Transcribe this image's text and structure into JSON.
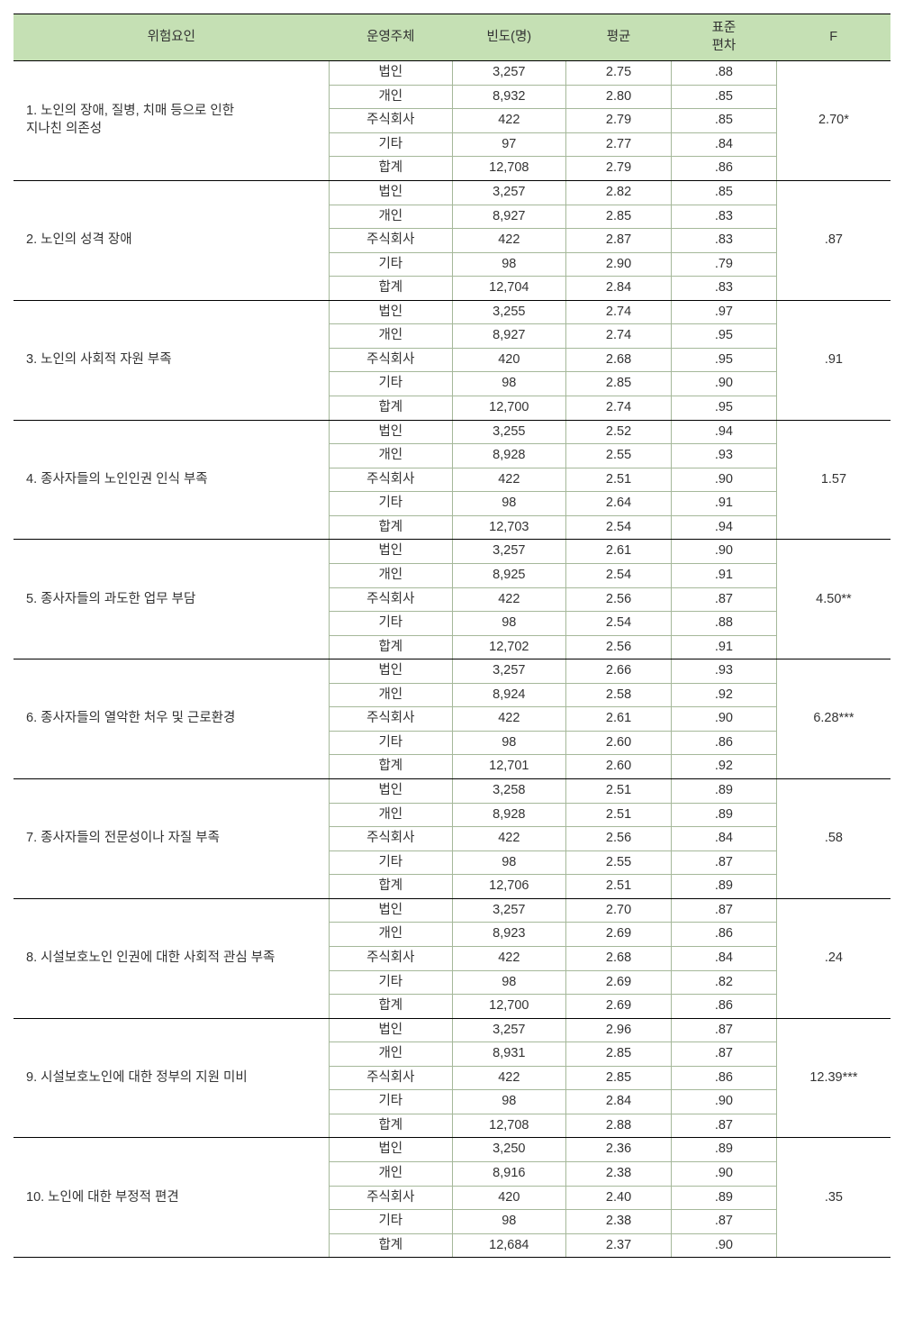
{
  "headers": {
    "factor": "위험요인",
    "entity": "운영주체",
    "frequency": "빈도(명)",
    "mean": "평균",
    "sd": "표준\n편차",
    "f": "F"
  },
  "entity_labels": [
    "법인",
    "개인",
    "주식회사",
    "기타",
    "합계"
  ],
  "groups": [
    {
      "label": "1.  노인의 장애, 질병, 치매 등으로 인한\n    지나친 의존성",
      "rows": [
        {
          "freq": "3,257",
          "mean": "2.75",
          "sd": ".88"
        },
        {
          "freq": "8,932",
          "mean": "2.80",
          "sd": ".85"
        },
        {
          "freq": "422",
          "mean": "2.79",
          "sd": ".85"
        },
        {
          "freq": "97",
          "mean": "2.77",
          "sd": ".84"
        },
        {
          "freq": "12,708",
          "mean": "2.79",
          "sd": ".86"
        }
      ],
      "f": "2.70*"
    },
    {
      "label": "2. 노인의 성격 장애",
      "rows": [
        {
          "freq": "3,257",
          "mean": "2.82",
          "sd": ".85"
        },
        {
          "freq": "8,927",
          "mean": "2.85",
          "sd": ".83"
        },
        {
          "freq": "422",
          "mean": "2.87",
          "sd": ".83"
        },
        {
          "freq": "98",
          "mean": "2.90",
          "sd": ".79"
        },
        {
          "freq": "12,704",
          "mean": "2.84",
          "sd": ".83"
        }
      ],
      "f": ".87"
    },
    {
      "label": "3. 노인의 사회적 자원 부족",
      "rows": [
        {
          "freq": "3,255",
          "mean": "2.74",
          "sd": ".97"
        },
        {
          "freq": "8,927",
          "mean": "2.74",
          "sd": ".95"
        },
        {
          "freq": "420",
          "mean": "2.68",
          "sd": ".95"
        },
        {
          "freq": "98",
          "mean": "2.85",
          "sd": ".90"
        },
        {
          "freq": "12,700",
          "mean": "2.74",
          "sd": ".95"
        }
      ],
      "f": ".91"
    },
    {
      "label": "4. 종사자들의 노인인권 인식 부족",
      "rows": [
        {
          "freq": "3,255",
          "mean": "2.52",
          "sd": ".94"
        },
        {
          "freq": "8,928",
          "mean": "2.55",
          "sd": ".93"
        },
        {
          "freq": "422",
          "mean": "2.51",
          "sd": ".90"
        },
        {
          "freq": "98",
          "mean": "2.64",
          "sd": ".91"
        },
        {
          "freq": "12,703",
          "mean": "2.54",
          "sd": ".94"
        }
      ],
      "f": "1.57"
    },
    {
      "label": "5. 종사자들의 과도한 업무 부담",
      "rows": [
        {
          "freq": "3,257",
          "mean": "2.61",
          "sd": ".90"
        },
        {
          "freq": "8,925",
          "mean": "2.54",
          "sd": ".91"
        },
        {
          "freq": "422",
          "mean": "2.56",
          "sd": ".87"
        },
        {
          "freq": "98",
          "mean": "2.54",
          "sd": ".88"
        },
        {
          "freq": "12,702",
          "mean": "2.56",
          "sd": ".91"
        }
      ],
      "f": "4.50**"
    },
    {
      "label": "6. 종사자들의 열악한 처우 및 근로환경",
      "rows": [
        {
          "freq": "3,257",
          "mean": "2.66",
          "sd": ".93"
        },
        {
          "freq": "8,924",
          "mean": "2.58",
          "sd": ".92"
        },
        {
          "freq": "422",
          "mean": "2.61",
          "sd": ".90"
        },
        {
          "freq": "98",
          "mean": "2.60",
          "sd": ".86"
        },
        {
          "freq": "12,701",
          "mean": "2.60",
          "sd": ".92"
        }
      ],
      "f": "6.28***"
    },
    {
      "label": "7. 종사자들의 전문성이나 자질 부족",
      "rows": [
        {
          "freq": "3,258",
          "mean": "2.51",
          "sd": ".89"
        },
        {
          "freq": "8,928",
          "mean": "2.51",
          "sd": ".89"
        },
        {
          "freq": "422",
          "mean": "2.56",
          "sd": ".84"
        },
        {
          "freq": "98",
          "mean": "2.55",
          "sd": ".87"
        },
        {
          "freq": "12,706",
          "mean": "2.51",
          "sd": ".89"
        }
      ],
      "f": ".58"
    },
    {
      "label": "8. 시설보호노인 인권에 대한 사회적 관심 부족",
      "rows": [
        {
          "freq": "3,257",
          "mean": "2.70",
          "sd": ".87"
        },
        {
          "freq": "8,923",
          "mean": "2.69",
          "sd": ".86"
        },
        {
          "freq": "422",
          "mean": "2.68",
          "sd": ".84"
        },
        {
          "freq": "98",
          "mean": "2.69",
          "sd": ".82"
        },
        {
          "freq": "12,700",
          "mean": "2.69",
          "sd": ".86"
        }
      ],
      "f": ".24"
    },
    {
      "label": "9. 시설보호노인에 대한 정부의 지원 미비",
      "rows": [
        {
          "freq": "3,257",
          "mean": "2.96",
          "sd": ".87"
        },
        {
          "freq": "8,931",
          "mean": "2.85",
          "sd": ".87"
        },
        {
          "freq": "422",
          "mean": "2.85",
          "sd": ".86"
        },
        {
          "freq": "98",
          "mean": "2.84",
          "sd": ".90"
        },
        {
          "freq": "12,708",
          "mean": "2.88",
          "sd": ".87"
        }
      ],
      "f": "12.39***"
    },
    {
      "label": "10. 노인에 대한 부정적 편견",
      "rows": [
        {
          "freq": "3,250",
          "mean": "2.36",
          "sd": ".89"
        },
        {
          "freq": "8,916",
          "mean": "2.38",
          "sd": ".90"
        },
        {
          "freq": "420",
          "mean": "2.40",
          "sd": ".89"
        },
        {
          "freq": "98",
          "mean": "2.38",
          "sd": ".87"
        },
        {
          "freq": "12,684",
          "mean": "2.37",
          "sd": ".90"
        }
      ],
      "f": ".35"
    }
  ]
}
